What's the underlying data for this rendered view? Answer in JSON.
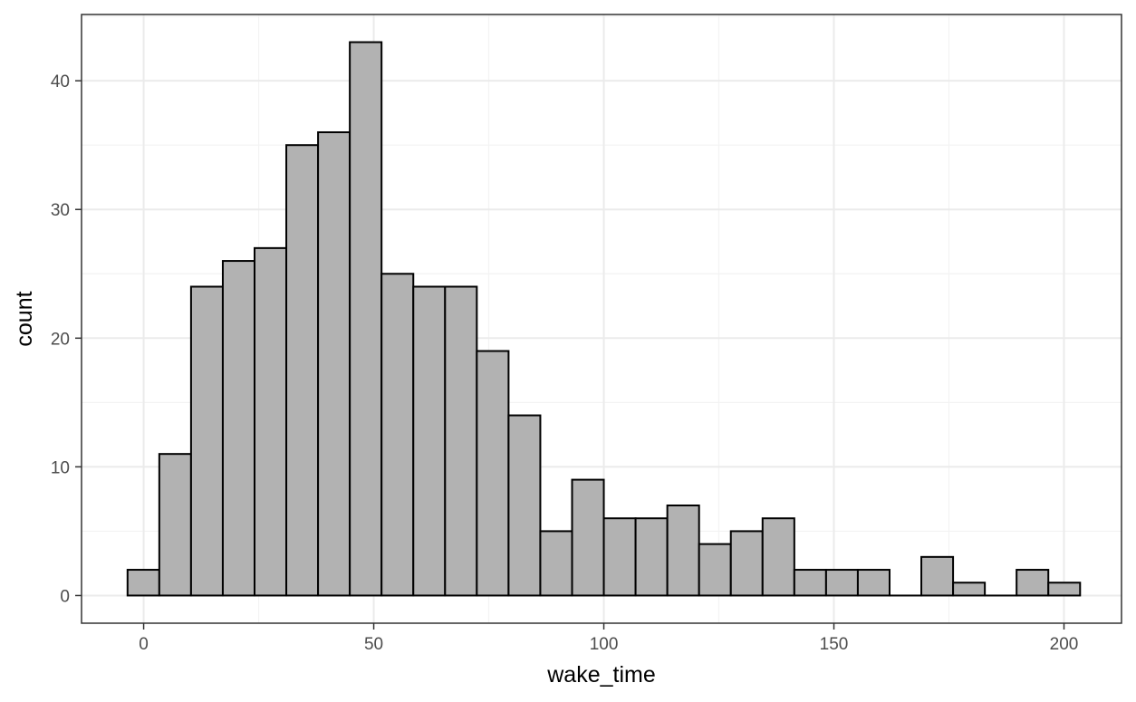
{
  "chart_data": {
    "type": "bar",
    "subtype": "histogram",
    "xlabel": "wake_time",
    "ylabel": "count",
    "bin_width": 6.9,
    "bin_start": -3.5,
    "counts": [
      2,
      11,
      24,
      26,
      27,
      35,
      36,
      43,
      25,
      24,
      24,
      19,
      14,
      5,
      9,
      6,
      6,
      7,
      4,
      5,
      6,
      2,
      2,
      2,
      0,
      3,
      1,
      0,
      2,
      1
    ],
    "xlim": [
      -13.5,
      212.5
    ],
    "ylim": [
      -2.15,
      45.15
    ],
    "x_major_ticks": [
      0,
      50,
      100,
      150,
      200
    ],
    "x_tick_labels": [
      "0",
      "50",
      "100",
      "150",
      "200"
    ],
    "y_major_ticks": [
      0,
      10,
      20,
      30,
      40
    ],
    "y_tick_labels": [
      "0",
      "10",
      "20",
      "30",
      "40"
    ],
    "grid": true,
    "legend": "none",
    "colors": {
      "bar_fill": "#b2b2b2",
      "bar_stroke": "#000000",
      "grid_major": "#ebebeb",
      "grid_minor": "#f3f3f3",
      "panel_border": "#333333",
      "background": "#ffffff"
    }
  }
}
